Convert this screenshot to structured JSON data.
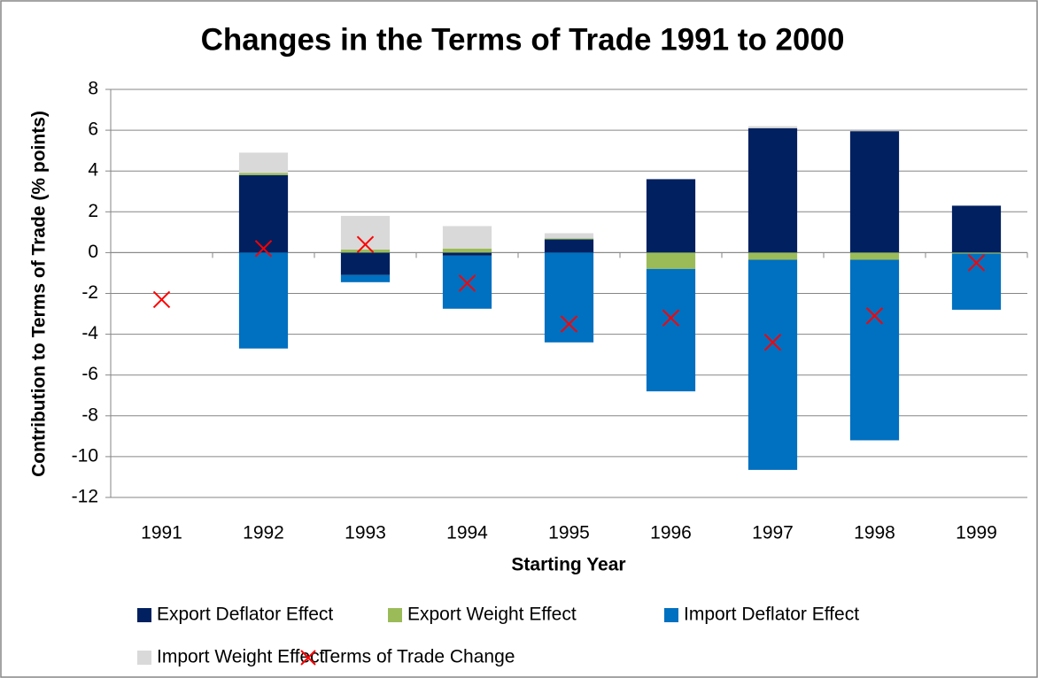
{
  "chart_data": {
    "type": "bar",
    "stacked": true,
    "title": "Changes in the Terms of Trade 1991 to 2000",
    "x_label": "Starting Year",
    "y_label": "Contribution to Terms of Trade (% points)",
    "categories": [
      "1991",
      "1992",
      "1993",
      "1994",
      "1995",
      "1996",
      "1997",
      "1998",
      "1999"
    ],
    "series": [
      {
        "name": "Export Deflator Effect",
        "type": "bar",
        "color": "#002060",
        "values": [
          null,
          3.8,
          -1.1,
          -0.15,
          0.65,
          3.6,
          6.1,
          5.95,
          2.3
        ]
      },
      {
        "name": "Export Weight Effect",
        "type": "bar",
        "color": "#9bbb59",
        "values": [
          null,
          0.1,
          0.15,
          0.2,
          0.05,
          -0.8,
          -0.35,
          -0.35,
          -0.05
        ]
      },
      {
        "name": "Import Deflator Effect",
        "type": "bar",
        "color": "#0070c0",
        "values": [
          null,
          -4.7,
          -0.35,
          -2.6,
          -4.4,
          -6.0,
          -10.3,
          -8.85,
          -2.75
        ]
      },
      {
        "name": "Import Weight Effect",
        "type": "bar",
        "color": "#d9d9d9",
        "values": [
          null,
          1.0,
          1.65,
          1.1,
          0.25,
          0,
          0.1,
          0,
          0
        ]
      },
      {
        "name": "Terms of Trade Change",
        "type": "scatter",
        "color": "#ff0000",
        "values": [
          -2.3,
          0.2,
          0.4,
          -1.5,
          -3.5,
          -3.2,
          -4.4,
          -3.1,
          -0.5
        ]
      }
    ],
    "ylim": [
      -12,
      8
    ],
    "yticks": [
      -12,
      -10,
      -8,
      -6,
      -4,
      -2,
      0,
      2,
      4,
      6,
      8
    ],
    "grid": true
  }
}
